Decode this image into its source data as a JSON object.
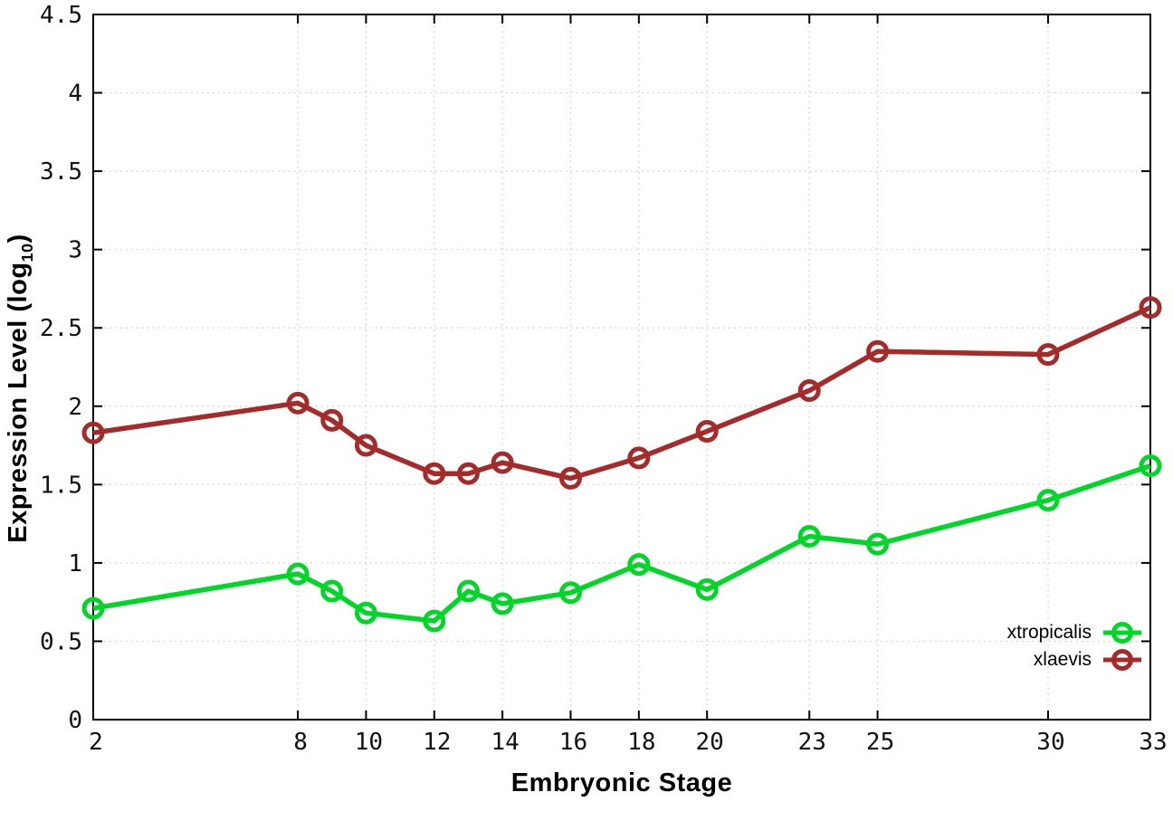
{
  "chart_data": {
    "type": "line",
    "title": "",
    "xlabel": "Embryonic Stage",
    "ylabel": "Expression Level (log10)",
    "ylabel_parts": {
      "prefix": "Expression Level (log",
      "sub": "10",
      "suffix": ")"
    },
    "x": [
      2,
      8,
      9,
      10,
      12,
      13,
      14,
      16,
      18,
      20,
      23,
      25,
      30,
      33
    ],
    "series": [
      {
        "name": "xtropicalis",
        "color": "#00d627",
        "values": [
          0.71,
          0.93,
          0.82,
          0.68,
          0.63,
          0.82,
          0.74,
          0.81,
          0.99,
          0.83,
          1.17,
          1.12,
          1.4,
          1.62
        ]
      },
      {
        "name": "xlaevis",
        "color": "#a52a2a",
        "values": [
          1.83,
          2.02,
          1.91,
          1.75,
          1.57,
          1.57,
          1.64,
          1.54,
          1.67,
          1.84,
          2.1,
          2.35,
          2.33,
          2.63
        ]
      }
    ],
    "xlim": [
      2,
      33
    ],
    "ylim": [
      0,
      4.5
    ],
    "x_ticks": [
      2,
      8,
      10,
      12,
      14,
      16,
      18,
      20,
      23,
      25,
      30,
      33
    ],
    "x_tick_labels": [
      "2",
      "8",
      "10",
      "12",
      "14",
      "16",
      "18",
      "20",
      "23",
      "25",
      "30",
      "33"
    ],
    "y_ticks": [
      0,
      0.5,
      1,
      1.5,
      2,
      2.5,
      3,
      3.5,
      4,
      4.5
    ],
    "y_tick_labels": [
      "0",
      "0.5",
      "1",
      "1.5",
      "2",
      "2.5",
      "3",
      "3.5",
      "4",
      "4.5"
    ],
    "grid": true,
    "legend_position": "bottom-right",
    "colors": {
      "background": "#ffffff",
      "grid": "#c9c9c9",
      "axis": "#000000",
      "tick_label": "#111111"
    }
  }
}
